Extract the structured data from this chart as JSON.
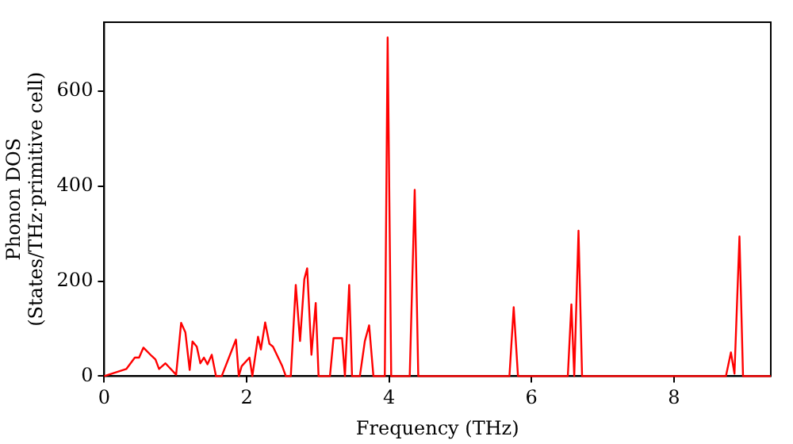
{
  "chart_data": {
    "type": "line",
    "xlabel": "Frequency (THz)",
    "ylabel": "Phonon DOS\n(States/THz·primitive cell)",
    "x": [
      0,
      0.31,
      0.43,
      0.49,
      0.55,
      0.67,
      0.72,
      0.77,
      0.86,
      1.01,
      1.08,
      1.14,
      1.2,
      1.24,
      1.3,
      1.35,
      1.4,
      1.45,
      1.51,
      1.57,
      1.65,
      1.85,
      1.89,
      1.93,
      2.04,
      2.08,
      2.16,
      2.2,
      2.26,
      2.32,
      2.37,
      2.5,
      2.55,
      2.62,
      2.69,
      2.75,
      2.81,
      2.85,
      2.91,
      2.97,
      3.01,
      3.17,
      3.22,
      3.34,
      3.38,
      3.44,
      3.48,
      3.59,
      3.66,
      3.72,
      3.78,
      3.94,
      3.98,
      4.03,
      4.29,
      4.36,
      4.41,
      5.69,
      5.75,
      5.81,
      6.51,
      6.56,
      6.6,
      6.66,
      6.71,
      8.73,
      8.8,
      8.85,
      8.92,
      8.97,
      9.36
    ],
    "series": [
      {
        "color": "#ff0000",
        "values": [
          0,
          15,
          39,
          39,
          60,
          42,
          35,
          15,
          27,
          3,
          112,
          92,
          13,
          73,
          62,
          27,
          39,
          25,
          45,
          0,
          0,
          77,
          0,
          21,
          39,
          0,
          83,
          56,
          113,
          68,
          62,
          21,
          0,
          0,
          192,
          74,
          204,
          227,
          45,
          154,
          0,
          0,
          80,
          80,
          0,
          192,
          0,
          0,
          74,
          107,
          0,
          0,
          713,
          0,
          0,
          392,
          0,
          0,
          145,
          0,
          0,
          151,
          0,
          306,
          0,
          0,
          50,
          5,
          294,
          0,
          0
        ]
      }
    ],
    "xlim": [
      0,
      9.36
    ],
    "ylim": [
      0,
      745
    ],
    "xticks": [
      0,
      2,
      4,
      6,
      8
    ],
    "yticks": [
      0,
      200,
      400,
      600
    ],
    "grid": false,
    "legend": false,
    "marker": "none",
    "line_style": "solid"
  }
}
